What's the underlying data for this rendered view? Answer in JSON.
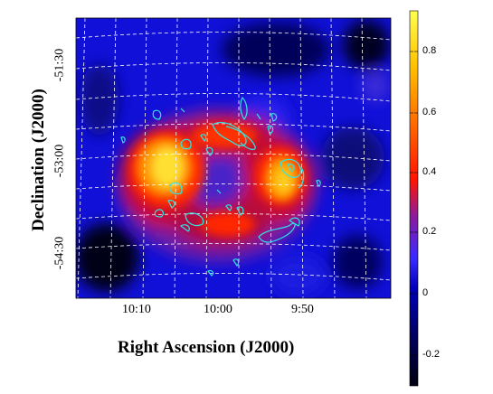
{
  "figure": {
    "x_axis_title": "Right Ascension (J2000)",
    "y_axis_title": "Declination (J2000)",
    "x_ticks": [
      "10:10",
      "10:00",
      "9:50"
    ],
    "y_ticks": [
      "-51:30",
      "-53:00",
      "-54:30"
    ],
    "colorbar_ticks": [
      "0.8",
      "0.6",
      "0.4",
      "0.2",
      "0",
      "-0.2"
    ],
    "colorbar_range": [
      -0.32,
      0.92
    ],
    "colormap": [
      "#000010",
      "#00008f",
      "#2a2aff",
      "#a00050",
      "#ff2000",
      "#ff8c00",
      "#ffff40"
    ],
    "contour_color": "#2ee6e6",
    "grid_color": "#ffffff"
  }
}
